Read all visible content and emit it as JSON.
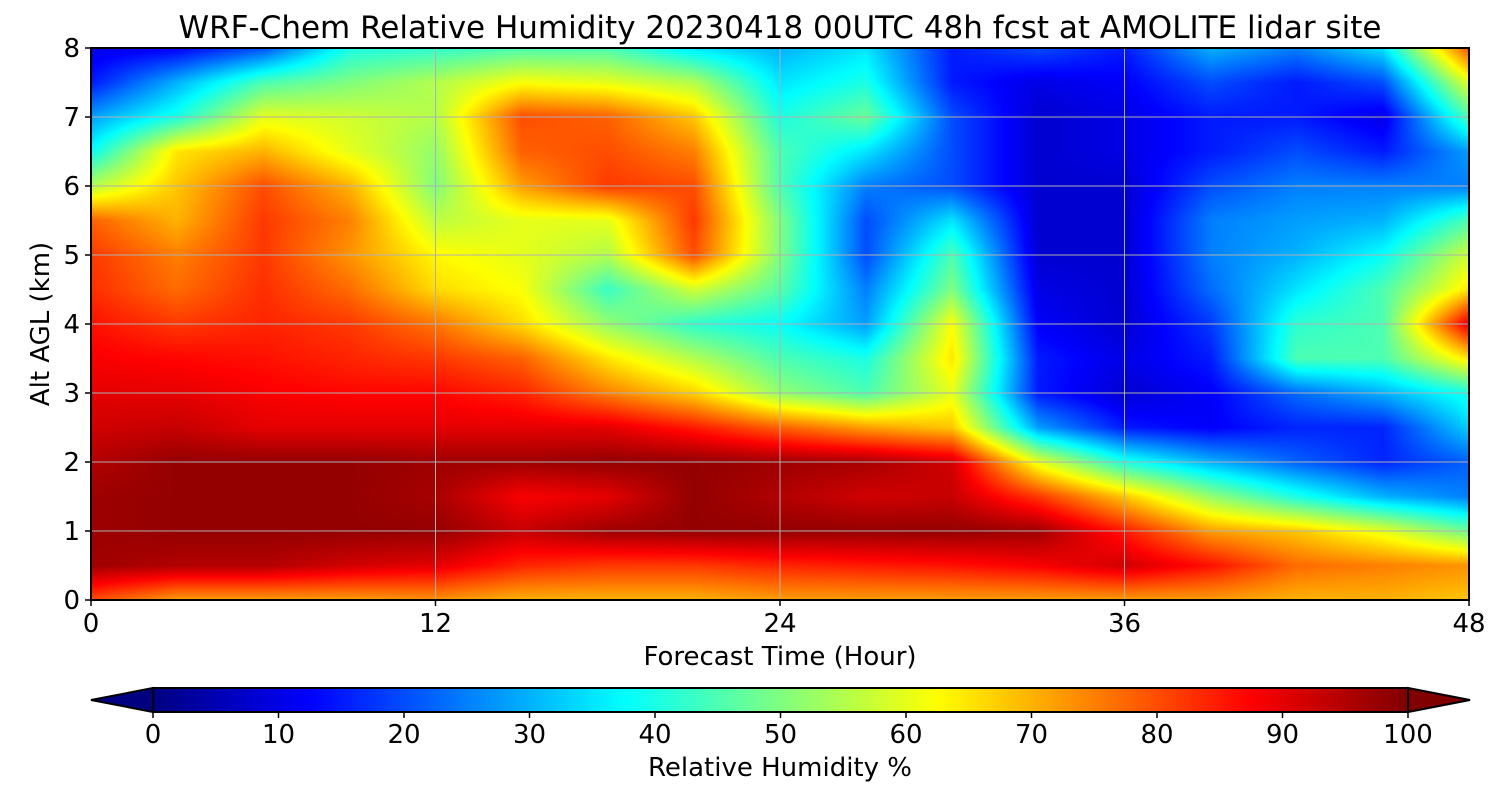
{
  "chart_data": {
    "type": "heatmap",
    "title": "WRF-Chem Relative Humidity 20230418 00UTC 48h fcst at AMOLITE lidar site",
    "xlabel": "Forecast Time (Hour)",
    "ylabel": "Alt AGL (km)",
    "xlim": [
      0,
      48
    ],
    "ylim": [
      0,
      8
    ],
    "x_ticks": [
      "0",
      "12",
      "24",
      "36",
      "48"
    ],
    "y_ticks": [
      "0",
      "1",
      "2",
      "3",
      "4",
      "5",
      "6",
      "7",
      "8"
    ],
    "grid": true,
    "colorbar": {
      "label": "Relative Humidity %",
      "cmap": "jet",
      "range": [
        0,
        100
      ],
      "ticks": [
        "0",
        "10",
        "20",
        "30",
        "40",
        "50",
        "60",
        "70",
        "80",
        "90",
        "100"
      ],
      "extend": "both",
      "orientation": "horizontal",
      "position": "bottom"
    },
    "x": [
      0,
      3,
      6,
      9,
      12,
      15,
      18,
      21,
      24,
      27,
      30,
      33,
      36,
      39,
      42,
      45,
      48
    ],
    "y": [
      0,
      0.5,
      1,
      1.5,
      2,
      2.5,
      3,
      3.5,
      4,
      4.5,
      5,
      5.5,
      6,
      6.5,
      7,
      7.5,
      8
    ],
    "z": [
      [
        80,
        72,
        72,
        72,
        73,
        70,
        70,
        70,
        72,
        72,
        72,
        72,
        72,
        72,
        70,
        70,
        68
      ],
      [
        97,
        95,
        95,
        92,
        90,
        84,
        82,
        82,
        84,
        85,
        86,
        88,
        92,
        86,
        77,
        75,
        73
      ],
      [
        97,
        98,
        98,
        98,
        98,
        93,
        97,
        98,
        98,
        98,
        98,
        97,
        85,
        72,
        68,
        60,
        48
      ],
      [
        97,
        98,
        98,
        98,
        96,
        88,
        90,
        98,
        95,
        92,
        93,
        82,
        68,
        52,
        40,
        30,
        25
      ],
      [
        95,
        98,
        98,
        98,
        97,
        97,
        98,
        98,
        97,
        96,
        92,
        60,
        40,
        30,
        22,
        16,
        22
      ],
      [
        92,
        93,
        90,
        90,
        90,
        90,
        90,
        85,
        78,
        72,
        68,
        28,
        15,
        12,
        16,
        16,
        33
      ],
      [
        90,
        90,
        88,
        87,
        87,
        84,
        75,
        67,
        52,
        45,
        60,
        15,
        8,
        12,
        23,
        30,
        40
      ],
      [
        88,
        87,
        86,
        84,
        82,
        78,
        65,
        55,
        45,
        40,
        65,
        15,
        10,
        15,
        45,
        45,
        65
      ],
      [
        86,
        82,
        84,
        82,
        76,
        66,
        52,
        42,
        38,
        28,
        62,
        12,
        8,
        18,
        42,
        45,
        90
      ],
      [
        83,
        77,
        83,
        77,
        66,
        62,
        43,
        58,
        46,
        25,
        50,
        10,
        8,
        23,
        35,
        45,
        65
      ],
      [
        82,
        75,
        82,
        73,
        63,
        60,
        55,
        80,
        50,
        20,
        45,
        8,
        8,
        25,
        30,
        38,
        58
      ],
      [
        78,
        70,
        82,
        75,
        56,
        60,
        60,
        82,
        50,
        20,
        35,
        8,
        8,
        25,
        28,
        30,
        45
      ],
      [
        55,
        68,
        80,
        70,
        50,
        72,
        82,
        80,
        45,
        25,
        20,
        8,
        8,
        20,
        25,
        25,
        25
      ],
      [
        38,
        65,
        70,
        60,
        52,
        78,
        80,
        75,
        45,
        35,
        20,
        8,
        10,
        15,
        20,
        15,
        28
      ],
      [
        28,
        40,
        60,
        58,
        55,
        80,
        78,
        68,
        40,
        48,
        20,
        8,
        10,
        15,
        15,
        10,
        45
      ],
      [
        15,
        30,
        45,
        50,
        55,
        62,
        60,
        55,
        35,
        40,
        15,
        10,
        12,
        20,
        15,
        20,
        60
      ],
      [
        10,
        12,
        20,
        40,
        42,
        45,
        45,
        35,
        30,
        35,
        15,
        20,
        15,
        30,
        25,
        35,
        80
      ]
    ]
  }
}
